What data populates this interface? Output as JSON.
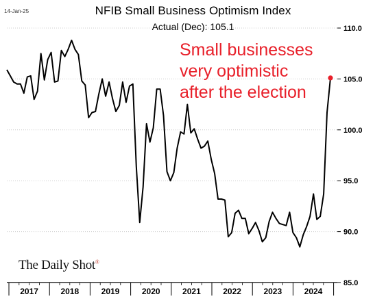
{
  "header": {
    "date_stamp": "14-Jan-25",
    "title": "NFIB Small Business Optimism Index",
    "subtitle": "Actual (Dec):  105.1"
  },
  "annotation": {
    "text": "Small businesses\nvery optimistic\nafter the election",
    "color": "#e8202a"
  },
  "logo": {
    "text": "The Daily Shot",
    "mark": "®"
  },
  "colors": {
    "line": "#000000",
    "highlight": "#e8202a",
    "grid": "#cccccc"
  },
  "chart_data": {
    "type": "line",
    "title": "NFIB Small Business Optimism Index",
    "subtitle": "Actual (Dec):  105.1",
    "x_unit": "month",
    "x_start": "2017-01",
    "ylim": [
      85.0,
      110.0
    ],
    "y_ticks": [
      "110.0",
      "105.0",
      "100.0",
      "95.0",
      "90.0",
      "85.0"
    ],
    "y_axis_position": "right",
    "x_labels": [
      "2017",
      "2018",
      "2019",
      "2020",
      "2021",
      "2022",
      "2023",
      "2024"
    ],
    "grid": "horizontal",
    "highlight_last_point": true,
    "series": [
      {
        "values": [
          105.9,
          105.3,
          104.7,
          104.5,
          104.5,
          103.6,
          105.2,
          105.3,
          103.0,
          103.8,
          107.5,
          104.9,
          106.9,
          107.6,
          104.7,
          104.8,
          107.8,
          107.2,
          107.9,
          108.8,
          107.9,
          107.4,
          104.8,
          104.4,
          101.2,
          101.7,
          101.8,
          103.5,
          105.0,
          103.3,
          104.7,
          103.1,
          101.8,
          102.4,
          104.7,
          102.7,
          104.3,
          104.5,
          96.4,
          90.9,
          94.4,
          100.6,
          98.8,
          100.2,
          104.0,
          104.0,
          101.4,
          95.9,
          95.0,
          95.8,
          98.2,
          99.8,
          99.6,
          102.5,
          99.7,
          100.1,
          99.1,
          98.2,
          98.4,
          98.9,
          97.1,
          95.7,
          93.2,
          93.2,
          93.1,
          89.5,
          89.9,
          91.8,
          92.1,
          91.3,
          91.3,
          89.8,
          90.3,
          90.9,
          90.1,
          89.0,
          89.4,
          91.0,
          91.9,
          91.3,
          90.8,
          90.7,
          90.6,
          91.9,
          89.9,
          89.4,
          88.5,
          89.7,
          90.5,
          91.5,
          93.7,
          91.2,
          91.5,
          93.7,
          101.7,
          105.1
        ]
      }
    ]
  }
}
